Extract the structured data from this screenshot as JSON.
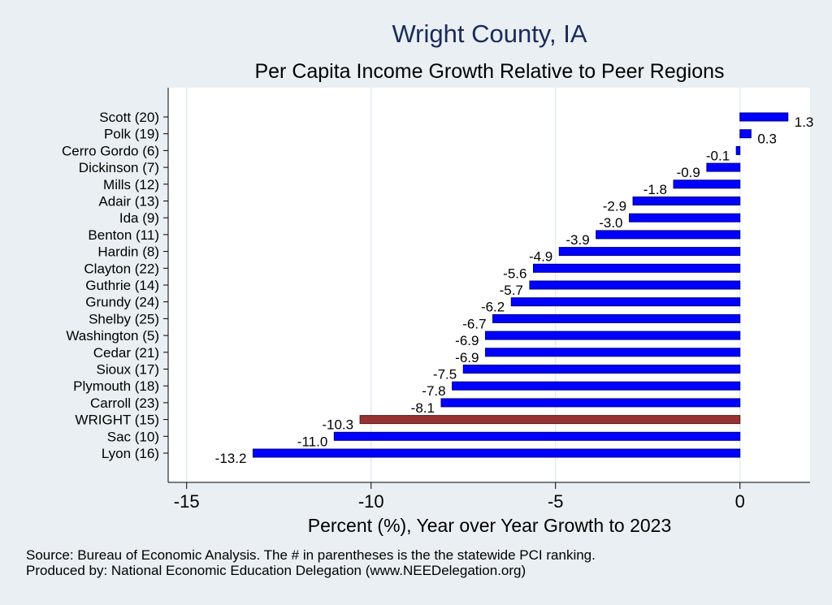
{
  "chart_data": {
    "type": "bar",
    "orientation": "horizontal",
    "title": "Wright County, IA",
    "subtitle": "Per Capita Income Growth Relative to Peer Regions",
    "xlabel": "Percent (%), Year over Year Growth to 2023",
    "xlim": [
      -15.5,
      1.9
    ],
    "xticks": [
      -15,
      -10,
      -5,
      0
    ],
    "xtick_labels": [
      "-15",
      "-10",
      "-5",
      "0"
    ],
    "grid": true,
    "categories": [
      "Scott (20)",
      "Polk (19)",
      "Cerro Gordo (6)",
      "Dickinson (7)",
      "Mills (12)",
      "Adair (13)",
      "Ida (9)",
      "Benton (11)",
      "Hardin (8)",
      "Clayton (22)",
      "Guthrie (14)",
      "Grundy (24)",
      "Shelby (25)",
      "Washington (5)",
      "Cedar (21)",
      "Sioux (17)",
      "Plymouth (18)",
      "Carroll (23)",
      "WRIGHT (15)",
      "Sac (10)",
      "Lyon (16)"
    ],
    "values": [
      1.3,
      0.3,
      -0.1,
      -0.9,
      -1.8,
      -2.9,
      -3.0,
      -3.9,
      -4.9,
      -5.6,
      -5.7,
      -6.2,
      -6.7,
      -6.9,
      -6.9,
      -7.5,
      -7.8,
      -8.1,
      -10.3,
      -11.0,
      -13.2
    ],
    "value_labels": [
      "1.3",
      "0.3",
      "-0.1",
      "-0.9",
      "-1.8",
      "-2.9",
      "-3.0",
      "-3.9",
      "-4.9",
      "-5.6",
      "-5.7",
      "-6.2",
      "-6.7",
      "-6.9",
      "-6.9",
      "-7.5",
      "-7.8",
      "-8.1",
      "-10.3",
      "-11.0",
      "-13.2"
    ],
    "highlight": "WRIGHT (15)",
    "colors": {
      "bar": "#0000ff",
      "highlight": "#993333",
      "bar_edge": "#000080",
      "plot_bg": "#ffffff",
      "page_bg": "#e9eff2",
      "grid": "#e4ecf0"
    }
  },
  "footer": {
    "source": "Source: Bureau of Economic Analysis. The # in parentheses is the the statewide PCI ranking.",
    "producer": "Produced by: National Economic Education Delegation (www.NEEDelegation.org)"
  }
}
